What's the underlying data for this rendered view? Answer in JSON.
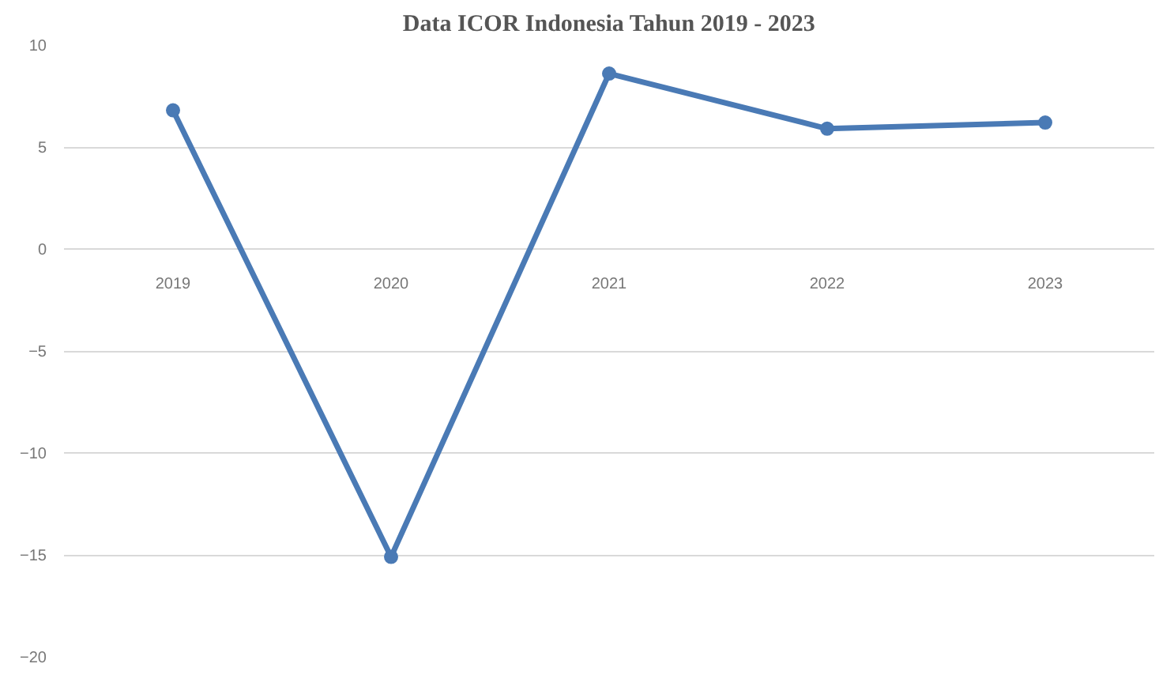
{
  "chart_data": {
    "type": "line",
    "title": "Data ICOR Indonesia Tahun 2019 - 2023",
    "categories": [
      "2019",
      "2020",
      "2021",
      "2022",
      "2023"
    ],
    "series": [
      {
        "color": "#4a7ab5",
        "values": [
          6.8,
          -15.1,
          8.6,
          5.9,
          6.2
        ]
      }
    ],
    "ylim": [
      -20,
      10
    ],
    "yticks": [
      -20,
      -15,
      -10,
      -5,
      0,
      5,
      10
    ],
    "grid": "y",
    "marker": "circle",
    "line_style": "solid"
  }
}
